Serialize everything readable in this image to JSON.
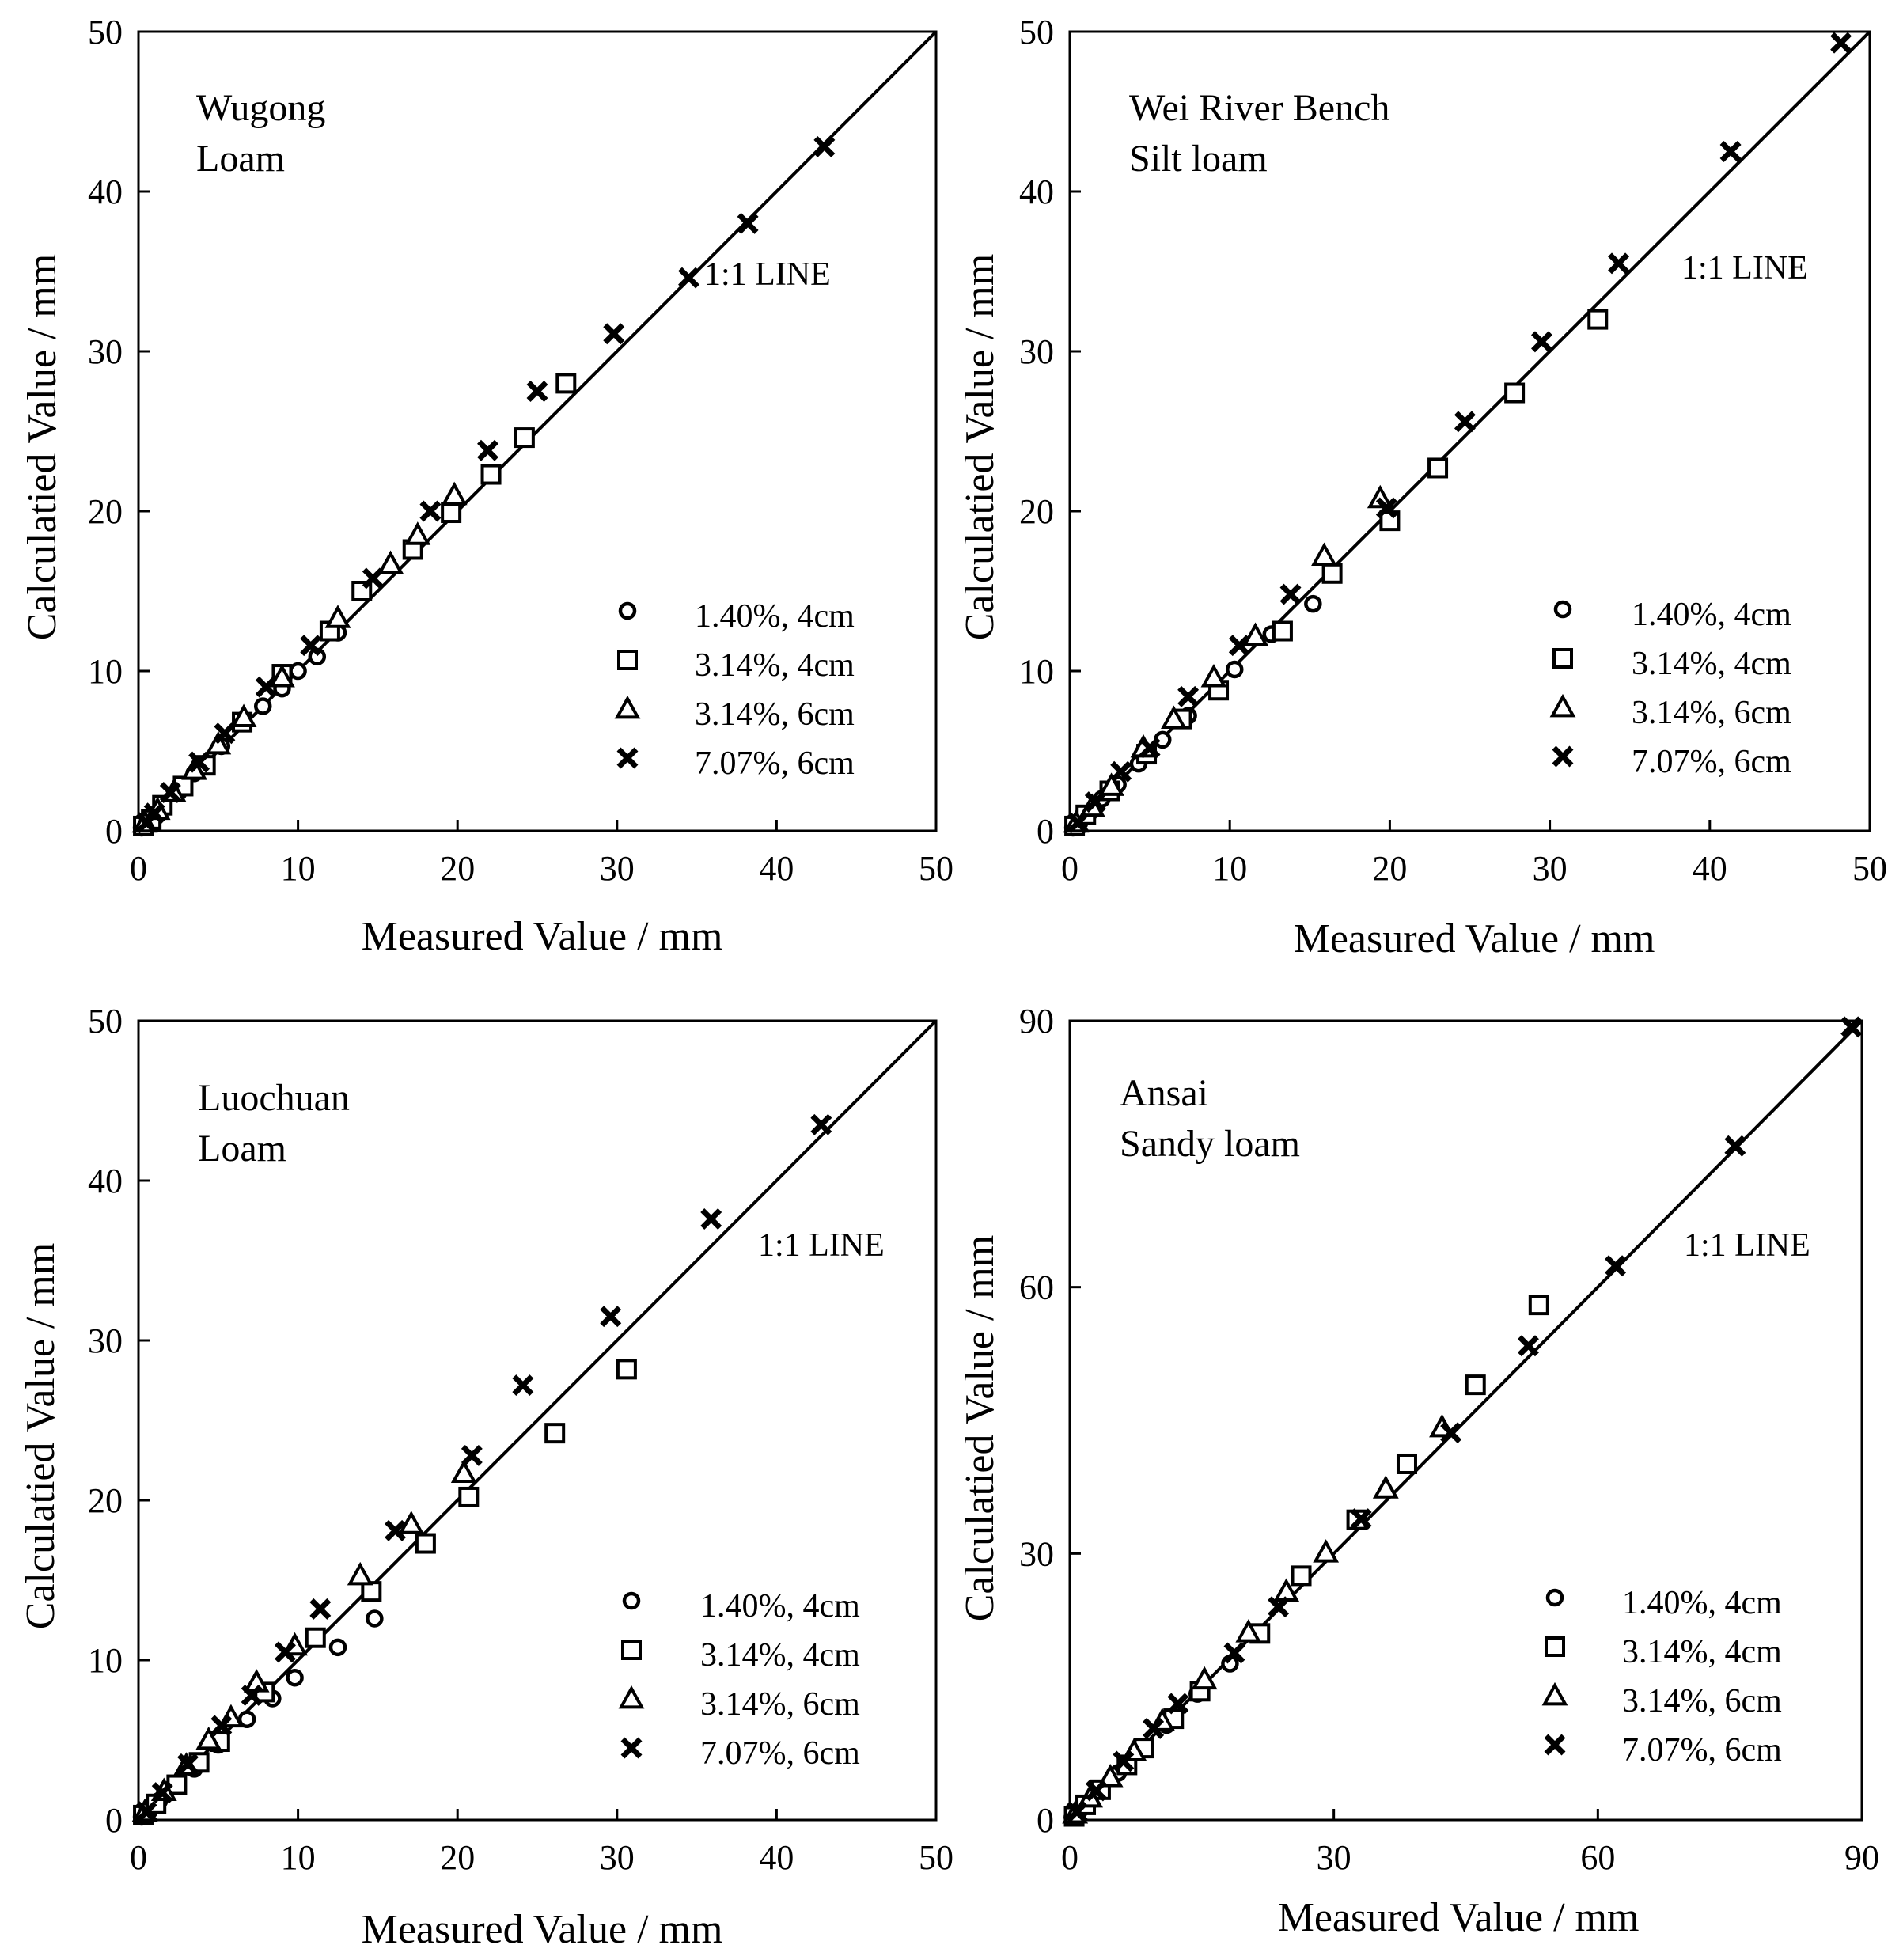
{
  "figure": {
    "colors": {
      "ink": "#000000",
      "background": "#ffffff"
    },
    "legend_symbols": [
      "circle-marker",
      "square-marker",
      "triangle-marker",
      "cross-marker"
    ]
  },
  "chart_data": [
    {
      "type": "scatter",
      "site": "Wugong",
      "soil": "Loam",
      "xlabel": "Measured Value / mm",
      "ylabel": "Calculatied Value / mm",
      "xlim": [
        0,
        50
      ],
      "ylim": [
        0,
        50
      ],
      "xticks": [
        0,
        10,
        20,
        30,
        40,
        50
      ],
      "yticks": [
        0,
        10,
        20,
        30,
        40,
        50
      ],
      "reference_line": "1:1 LINE",
      "legend_placement": "lower-right",
      "series": [
        {
          "name": "1.40%, 4cm",
          "marker": "circle",
          "points": [
            [
              0.2,
              0.2
            ],
            [
              0.5,
              0.4
            ],
            [
              1.0,
              1.0
            ],
            [
              1.5,
              1.4
            ],
            [
              2.5,
              2.4
            ],
            [
              3.5,
              3.6
            ],
            [
              5.2,
              5.3
            ],
            [
              7.8,
              7.8
            ],
            [
              9.0,
              8.9
            ],
            [
              10.0,
              10.0
            ],
            [
              11.2,
              10.9
            ],
            [
              12.5,
              12.4
            ]
          ]
        },
        {
          "name": "3.14%, 4cm",
          "marker": "square",
          "points": [
            [
              0.3,
              0.3
            ],
            [
              0.8,
              0.7
            ],
            [
              1.5,
              1.6
            ],
            [
              2.8,
              2.8
            ],
            [
              4.2,
              4.1
            ],
            [
              6.5,
              6.8
            ],
            [
              9.0,
              9.8
            ],
            [
              12.0,
              12.5
            ],
            [
              14.0,
              15.0
            ],
            [
              17.2,
              17.6
            ],
            [
              19.6,
              19.9
            ],
            [
              22.1,
              22.3
            ],
            [
              24.2,
              24.6
            ],
            [
              26.8,
              28.0
            ]
          ]
        },
        {
          "name": "3.14%, 6cm",
          "marker": "triangle",
          "points": [
            [
              0.4,
              0.5
            ],
            [
              1.2,
              1.3
            ],
            [
              2.2,
              2.4
            ],
            [
              3.5,
              3.8
            ],
            [
              5.0,
              5.4
            ],
            [
              6.6,
              7.1
            ],
            [
              9.0,
              9.6
            ],
            [
              12.5,
              13.3
            ],
            [
              15.8,
              16.7
            ],
            [
              17.5,
              18.5
            ],
            [
              19.8,
              21.0
            ]
          ]
        },
        {
          "name": "7.07%, 6cm",
          "marker": "cross",
          "points": [
            [
              0.5,
              0.5
            ],
            [
              1.0,
              1.1
            ],
            [
              2.0,
              2.4
            ],
            [
              3.8,
              4.3
            ],
            [
              5.4,
              6.1
            ],
            [
              8.0,
              9.0
            ],
            [
              10.8,
              11.6
            ],
            [
              14.7,
              15.8
            ],
            [
              18.3,
              20.0
            ],
            [
              21.9,
              23.8
            ],
            [
              25.0,
              27.5
            ],
            [
              29.8,
              31.1
            ],
            [
              34.5,
              34.6
            ],
            [
              38.2,
              38.0
            ],
            [
              43.0,
              42.8
            ]
          ]
        }
      ]
    },
    {
      "type": "scatter",
      "site": "Wei River Bench",
      "soil": "Silt loam",
      "xlabel": "Measured Value / mm",
      "ylabel": "Calculatied Value / mm",
      "xlim": [
        0,
        50
      ],
      "ylim": [
        0,
        50
      ],
      "xticks": [
        0,
        10,
        20,
        30,
        40,
        50
      ],
      "yticks": [
        0,
        10,
        20,
        30,
        40,
        50
      ],
      "reference_line": "1:1 LINE",
      "legend_placement": "lower-right",
      "series": [
        {
          "name": "1.40%, 4cm",
          "marker": "circle",
          "points": [
            [
              0.2,
              0.2
            ],
            [
              0.6,
              0.5
            ],
            [
              1.2,
              1.1
            ],
            [
              2.0,
              2.0
            ],
            [
              3.0,
              2.9
            ],
            [
              4.3,
              4.2
            ],
            [
              5.8,
              5.7
            ],
            [
              7.4,
              7.2
            ],
            [
              10.3,
              10.1
            ],
            [
              12.6,
              12.3
            ],
            [
              15.2,
              14.2
            ]
          ]
        },
        {
          "name": "3.14%, 4cm",
          "marker": "square",
          "points": [
            [
              0.3,
              0.3
            ],
            [
              1.0,
              1.0
            ],
            [
              2.5,
              2.5
            ],
            [
              4.8,
              4.8
            ],
            [
              7.0,
              7.0
            ],
            [
              9.3,
              8.8
            ],
            [
              13.3,
              12.5
            ],
            [
              16.4,
              16.1
            ],
            [
              20.0,
              19.4
            ],
            [
              23.0,
              22.7
            ],
            [
              27.8,
              27.4
            ],
            [
              33.0,
              32.0
            ]
          ]
        },
        {
          "name": "3.14%, 6cm",
          "marker": "triangle",
          "points": [
            [
              0.4,
              0.5
            ],
            [
              1.4,
              1.5
            ],
            [
              2.6,
              2.8
            ],
            [
              4.6,
              5.2
            ],
            [
              6.5,
              7.0
            ],
            [
              9.0,
              9.6
            ],
            [
              11.6,
              12.2
            ],
            [
              15.9,
              17.2
            ],
            [
              19.4,
              20.8
            ]
          ]
        },
        {
          "name": "7.07%, 6cm",
          "marker": "cross",
          "points": [
            [
              0.5,
              0.5
            ],
            [
              1.6,
              1.8
            ],
            [
              3.2,
              3.7
            ],
            [
              5.0,
              5.2
            ],
            [
              7.4,
              8.4
            ],
            [
              10.6,
              11.6
            ],
            [
              13.8,
              14.8
            ],
            [
              19.8,
              20.2
            ],
            [
              24.7,
              25.6
            ],
            [
              29.5,
              30.6
            ],
            [
              34.3,
              35.5
            ],
            [
              41.3,
              42.5
            ],
            [
              48.2,
              49.3
            ]
          ]
        }
      ]
    },
    {
      "type": "scatter",
      "site": "Luochuan",
      "soil": "Loam",
      "xlabel": "Measured Value / mm",
      "ylabel": "Calculatied Value / mm",
      "xlim": [
        0,
        50
      ],
      "ylim": [
        0,
        50
      ],
      "xticks": [
        0,
        10,
        20,
        30,
        40,
        50
      ],
      "yticks": [
        0,
        10,
        20,
        30,
        40,
        50
      ],
      "reference_line": "1:1 LINE",
      "legend_placement": "lower-right",
      "series": [
        {
          "name": "1.40%, 4cm",
          "marker": "circle",
          "points": [
            [
              0.2,
              0.2
            ],
            [
              0.7,
              0.6
            ],
            [
              1.3,
              1.2
            ],
            [
              2.2,
              2.1
            ],
            [
              3.5,
              3.2
            ],
            [
              5.0,
              4.7
            ],
            [
              6.8,
              6.3
            ],
            [
              8.4,
              7.6
            ],
            [
              9.8,
              8.9
            ],
            [
              12.5,
              10.8
            ],
            [
              14.8,
              12.6
            ]
          ]
        },
        {
          "name": "3.14%, 4cm",
          "marker": "square",
          "points": [
            [
              0.3,
              0.3
            ],
            [
              1.1,
              1.0
            ],
            [
              2.4,
              2.2
            ],
            [
              3.8,
              3.6
            ],
            [
              5.1,
              4.9
            ],
            [
              7.9,
              8.0
            ],
            [
              11.1,
              11.4
            ],
            [
              14.6,
              14.3
            ],
            [
              18.0,
              17.3
            ],
            [
              20.7,
              20.2
            ],
            [
              26.1,
              24.2
            ],
            [
              30.6,
              28.2
            ]
          ]
        },
        {
          "name": "3.14%, 6cm",
          "marker": "triangle",
          "points": [
            [
              0.4,
              0.5
            ],
            [
              1.6,
              1.8
            ],
            [
              3.0,
              3.4
            ],
            [
              4.4,
              5.0
            ],
            [
              5.8,
              6.4
            ],
            [
              7.4,
              8.6
            ],
            [
              9.8,
              10.9
            ],
            [
              13.9,
              15.3
            ],
            [
              17.1,
              18.5
            ],
            [
              20.4,
              21.7
            ]
          ]
        },
        {
          "name": "7.07%, 6cm",
          "marker": "cross",
          "points": [
            [
              0.5,
              0.5
            ],
            [
              1.5,
              1.7
            ],
            [
              3.1,
              3.5
            ],
            [
              5.2,
              5.9
            ],
            [
              7.1,
              7.8
            ],
            [
              9.2,
              10.5
            ],
            [
              11.4,
              13.2
            ],
            [
              16.1,
              18.1
            ],
            [
              20.9,
              22.8
            ],
            [
              24.1,
              27.2
            ],
            [
              29.6,
              31.5
            ],
            [
              35.9,
              37.6
            ],
            [
              42.8,
              43.5
            ]
          ]
        }
      ]
    },
    {
      "type": "scatter",
      "site": "Ansai",
      "soil": "Sandy loam",
      "xlabel": "Measured Value / mm",
      "ylabel": "Calculatied Value / mm",
      "xlim": [
        0,
        90
      ],
      "ylim": [
        0,
        90
      ],
      "xticks": [
        0,
        30,
        60,
        90
      ],
      "yticks": [
        0,
        30,
        60,
        90
      ],
      "reference_line": "1:1 LINE",
      "legend_placement": "lower-right",
      "series": [
        {
          "name": "1.40%, 4cm",
          "marker": "circle",
          "points": [
            [
              0.3,
              0.3
            ],
            [
              1.0,
              0.9
            ],
            [
              2.2,
              2.0
            ],
            [
              3.6,
              3.4
            ],
            [
              5.5,
              5.3
            ],
            [
              8.0,
              7.8
            ],
            [
              11.0,
              10.7
            ],
            [
              14.5,
              14.2
            ],
            [
              18.2,
              17.6
            ]
          ]
        },
        {
          "name": "3.14%, 4cm",
          "marker": "square",
          "points": [
            [
              0.5,
              0.4
            ],
            [
              1.8,
              1.7
            ],
            [
              3.5,
              3.4
            ],
            [
              6.5,
              6.2
            ],
            [
              8.4,
              8.1
            ],
            [
              11.8,
              11.4
            ],
            [
              14.8,
              14.5
            ],
            [
              21.6,
              21.0
            ],
            [
              26.3,
              27.5
            ],
            [
              32.6,
              33.8
            ],
            [
              38.3,
              40.1
            ],
            [
              46.1,
              49.0
            ],
            [
              53.3,
              58.0
            ]
          ]
        },
        {
          "name": "3.14%, 6cm",
          "marker": "triangle",
          "points": [
            [
              0.6,
              0.7
            ],
            [
              2.3,
              2.5
            ],
            [
              4.6,
              4.8
            ],
            [
              7.3,
              7.7
            ],
            [
              10.5,
              11.1
            ],
            [
              15.3,
              15.8
            ],
            [
              20.3,
              21.1
            ],
            [
              24.6,
              25.7
            ],
            [
              29.1,
              30.1
            ],
            [
              35.9,
              37.3
            ],
            [
              42.3,
              44.2
            ]
          ]
        },
        {
          "name": "7.07%, 6cm",
          "marker": "cross",
          "points": [
            [
              0.8,
              0.9
            ],
            [
              3.0,
              3.3
            ],
            [
              6.1,
              6.6
            ],
            [
              9.5,
              10.3
            ],
            [
              12.3,
              13.1
            ],
            [
              18.7,
              18.8
            ],
            [
              23.7,
              24.0
            ],
            [
              33.1,
              33.9
            ],
            [
              43.3,
              43.6
            ],
            [
              52.1,
              53.4
            ],
            [
              62.0,
              62.4
            ],
            [
              75.6,
              75.9
            ],
            [
              88.8,
              89.3
            ]
          ]
        }
      ]
    }
  ]
}
